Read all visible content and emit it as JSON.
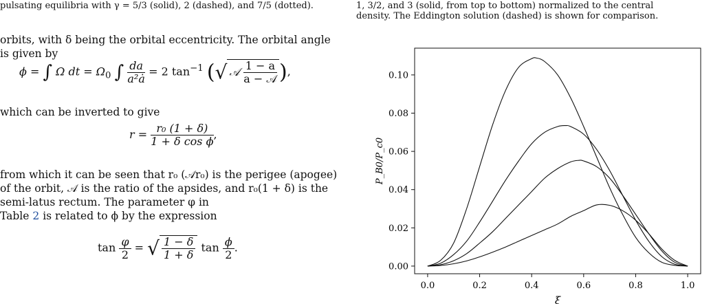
{
  "left": {
    "caption_top": "pulsating equilibria with γ = 5/3 (solid), 2 (dashed), and 7/5 (dotted).",
    "para1": "orbits, with δ being the orbital eccentricity. The orbital angle is given by",
    "eq1": {
      "lhs": "ϕ =",
      "part1": "Ω dt = Ω",
      "sub0": "0",
      "frac_num": "da",
      "frac_den": "a²ȧ",
      "part2": "= 2 tan",
      "sup": "−1",
      "sqrt_A": "𝒜",
      "sqrt_num": "1 − a",
      "sqrt_den": "a − 𝒜",
      "tail": ","
    },
    "para2": "which can be inverted to give",
    "eq2": {
      "lhs": "r =",
      "num": "r₀ (1 + δ)",
      "den": "1 + δ cos ϕ",
      "tail": ","
    },
    "para3": "from which it can be seen that r₀ (𝒜r₀) is the perigee (apogee) of the orbit, 𝒜 is the ratio of the apsides, and r₀(1 + δ) is the semi-latus rectum. The parameter φ in",
    "para4_pre": "Table",
    "para4_ref": "2",
    "para4_post": "is related to ϕ by the expression",
    "eq3": {
      "lhs": "tan",
      "lhs_num": "φ",
      "lhs_den": "2",
      "eq": "=",
      "sqrt_num": "1 − δ",
      "sqrt_den": "1 + δ",
      "rhs": "tan",
      "rhs_num": "ϕ",
      "rhs_den": "2",
      "tail": "."
    }
  },
  "right": {
    "caption_line1": "1, 3/2, and 3 (solid, from top to bottom) normalized to the central",
    "caption_line2": "density. The Eddington solution (dashed) is shown for comparison."
  },
  "chart_data": {
    "type": "line",
    "xlabel": "ξ",
    "ylabel": "P_B0/P_c0",
    "xlim": [
      -0.05,
      1.05
    ],
    "ylim": [
      -0.004,
      0.114
    ],
    "xticks": [
      "0.0",
      "0.2",
      "0.4",
      "0.6",
      "0.8",
      "1.0"
    ],
    "xtick_values": [
      0.0,
      0.2,
      0.4,
      0.6,
      0.8,
      1.0
    ],
    "yticks": [
      "0.00",
      "0.02",
      "0.04",
      "0.06",
      "0.08",
      "0.10"
    ],
    "ytick_values": [
      0.0,
      0.02,
      0.04,
      0.06,
      0.08,
      0.1
    ],
    "series": [
      {
        "x": [
          0,
          0.05,
          0.1,
          0.15,
          0.2,
          0.25,
          0.3,
          0.35,
          0.4,
          0.42,
          0.45,
          0.5,
          0.55,
          0.6,
          0.65,
          0.7,
          0.75,
          0.8,
          0.85,
          0.9,
          0.95,
          1.0
        ],
        "y": [
          0,
          0.003,
          0.012,
          0.03,
          0.052,
          0.074,
          0.092,
          0.104,
          0.1085,
          0.1088,
          0.107,
          0.1,
          0.088,
          0.073,
          0.057,
          0.041,
          0.027,
          0.015,
          0.007,
          0.002,
          0.0004,
          0
        ]
      },
      {
        "x": [
          0,
          0.05,
          0.1,
          0.15,
          0.2,
          0.25,
          0.3,
          0.35,
          0.4,
          0.45,
          0.5,
          0.53,
          0.55,
          0.6,
          0.65,
          0.7,
          0.75,
          0.8,
          0.85,
          0.9,
          0.95,
          1.0
        ],
        "y": [
          0,
          0.0015,
          0.006,
          0.013,
          0.023,
          0.034,
          0.045,
          0.055,
          0.064,
          0.07,
          0.073,
          0.0735,
          0.073,
          0.069,
          0.061,
          0.05,
          0.037,
          0.024,
          0.013,
          0.005,
          0.001,
          0
        ]
      },
      {
        "x": [
          0,
          0.05,
          0.1,
          0.15,
          0.2,
          0.25,
          0.3,
          0.35,
          0.4,
          0.45,
          0.5,
          0.55,
          0.58,
          0.6,
          0.65,
          0.7,
          0.75,
          0.8,
          0.85,
          0.9,
          0.95,
          1.0
        ],
        "y": [
          0,
          0.0007,
          0.0028,
          0.0065,
          0.012,
          0.018,
          0.025,
          0.032,
          0.039,
          0.046,
          0.051,
          0.0545,
          0.0553,
          0.055,
          0.052,
          0.046,
          0.037,
          0.027,
          0.017,
          0.008,
          0.002,
          0
        ]
      },
      {
        "x": [
          0,
          0.05,
          0.1,
          0.15,
          0.2,
          0.25,
          0.3,
          0.35,
          0.4,
          0.45,
          0.5,
          0.55,
          0.6,
          0.65,
          0.7,
          0.75,
          0.8,
          0.85,
          0.9,
          0.95,
          1.0
        ],
        "y": [
          0,
          0.0003,
          0.0012,
          0.0027,
          0.0048,
          0.0073,
          0.01,
          0.013,
          0.016,
          0.019,
          0.022,
          0.026,
          0.029,
          0.032,
          0.0318,
          0.029,
          0.024,
          0.017,
          0.009,
          0.003,
          0
        ]
      }
    ]
  }
}
